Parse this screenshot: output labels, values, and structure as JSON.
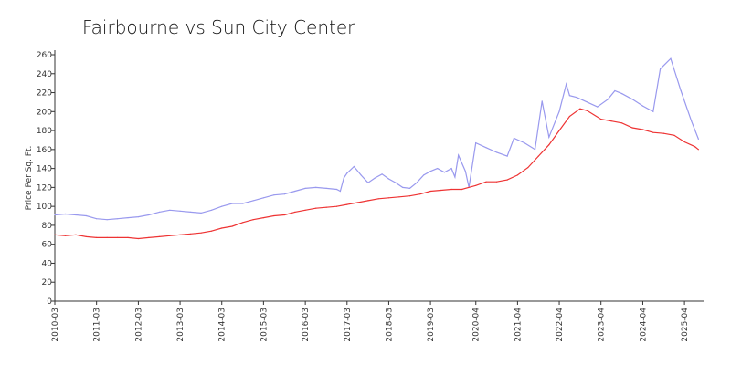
{
  "chart_data": {
    "type": "line",
    "title": "Fairbourne vs Sun City Center",
    "xlabel": "",
    "ylabel": "Price Per Sq. Ft.",
    "ylim": [
      0,
      260
    ],
    "y_ticks": [
      "0",
      "20",
      "40",
      "60",
      "80",
      "100",
      "120",
      "140",
      "160",
      "180",
      "200",
      "220",
      "240",
      "260"
    ],
    "x_tick_labels": [
      "2010-03",
      "2011-03",
      "2012-03",
      "2013-03",
      "2014-03",
      "2015-03",
      "2016-03",
      "2017-03",
      "2018-03",
      "2019-03",
      "2020-04",
      "2021-04",
      "2022-04",
      "2023-04",
      "2024-04",
      "2025-04"
    ],
    "grid": false,
    "legend": "none",
    "series": [
      {
        "color": "#9999ee",
        "points": [
          [
            "2010-03",
            91
          ],
          [
            "2010-06",
            92
          ],
          [
            "2010-09",
            91
          ],
          [
            "2010-12",
            90
          ],
          [
            "2011-03",
            87
          ],
          [
            "2011-06",
            86
          ],
          [
            "2011-09",
            87
          ],
          [
            "2011-12",
            88
          ],
          [
            "2012-03",
            89
          ],
          [
            "2012-06",
            91
          ],
          [
            "2012-09",
            94
          ],
          [
            "2012-12",
            96
          ],
          [
            "2013-03",
            95
          ],
          [
            "2013-06",
            94
          ],
          [
            "2013-09",
            93
          ],
          [
            "2013-12",
            96
          ],
          [
            "2014-03",
            100
          ],
          [
            "2014-06",
            103
          ],
          [
            "2014-09",
            103
          ],
          [
            "2014-12",
            106
          ],
          [
            "2015-03",
            109
          ],
          [
            "2015-06",
            112
          ],
          [
            "2015-09",
            113
          ],
          [
            "2015-12",
            116
          ],
          [
            "2016-03",
            119
          ],
          [
            "2016-06",
            120
          ],
          [
            "2016-09",
            119
          ],
          [
            "2016-12",
            118
          ],
          [
            "2017-01",
            116
          ],
          [
            "2017-02",
            130
          ],
          [
            "2017-03",
            135
          ],
          [
            "2017-05",
            142
          ],
          [
            "2017-07",
            133
          ],
          [
            "2017-09",
            125
          ],
          [
            "2017-11",
            130
          ],
          [
            "2018-01",
            134
          ],
          [
            "2018-03",
            129
          ],
          [
            "2018-05",
            125
          ],
          [
            "2018-07",
            120
          ],
          [
            "2018-09",
            119
          ],
          [
            "2018-11",
            125
          ],
          [
            "2019-01",
            133
          ],
          [
            "2019-03",
            137
          ],
          [
            "2019-05",
            140
          ],
          [
            "2019-07",
            136
          ],
          [
            "2019-09",
            140
          ],
          [
            "2019-10",
            131
          ],
          [
            "2019-11",
            154
          ],
          [
            "2020-01",
            137
          ],
          [
            "2020-02",
            120
          ],
          [
            "2020-04",
            167
          ],
          [
            "2020-07",
            162
          ],
          [
            "2020-10",
            157
          ],
          [
            "2021-01",
            153
          ],
          [
            "2021-03",
            172
          ],
          [
            "2021-06",
            167
          ],
          [
            "2021-09",
            160
          ],
          [
            "2021-11",
            211
          ],
          [
            "2022-01",
            173
          ],
          [
            "2022-04",
            200
          ],
          [
            "2022-06",
            229
          ],
          [
            "2022-07",
            217
          ],
          [
            "2022-09",
            215
          ],
          [
            "2022-12",
            210
          ],
          [
            "2023-03",
            205
          ],
          [
            "2023-06",
            213
          ],
          [
            "2023-08",
            222
          ],
          [
            "2023-10",
            219
          ],
          [
            "2024-01",
            213
          ],
          [
            "2024-04",
            206
          ],
          [
            "2024-07",
            200
          ],
          [
            "2024-09",
            245
          ],
          [
            "2024-12",
            256
          ],
          [
            "2025-03",
            222
          ],
          [
            "2025-06",
            190
          ],
          [
            "2025-08",
            171
          ]
        ]
      },
      {
        "color": "#ee3333",
        "points": [
          [
            "2010-03",
            70
          ],
          [
            "2010-06",
            69
          ],
          [
            "2010-09",
            70
          ],
          [
            "2010-12",
            68
          ],
          [
            "2011-03",
            67
          ],
          [
            "2011-06",
            67
          ],
          [
            "2011-09",
            67
          ],
          [
            "2011-12",
            67
          ],
          [
            "2012-03",
            66
          ],
          [
            "2012-06",
            67
          ],
          [
            "2012-09",
            68
          ],
          [
            "2012-12",
            69
          ],
          [
            "2013-03",
            70
          ],
          [
            "2013-06",
            71
          ],
          [
            "2013-09",
            72
          ],
          [
            "2013-12",
            74
          ],
          [
            "2014-03",
            77
          ],
          [
            "2014-06",
            79
          ],
          [
            "2014-09",
            83
          ],
          [
            "2014-12",
            86
          ],
          [
            "2015-03",
            88
          ],
          [
            "2015-06",
            90
          ],
          [
            "2015-09",
            91
          ],
          [
            "2015-12",
            94
          ],
          [
            "2016-03",
            96
          ],
          [
            "2016-06",
            98
          ],
          [
            "2016-09",
            99
          ],
          [
            "2016-12",
            100
          ],
          [
            "2017-03",
            102
          ],
          [
            "2017-06",
            104
          ],
          [
            "2017-09",
            106
          ],
          [
            "2017-12",
            108
          ],
          [
            "2018-03",
            109
          ],
          [
            "2018-06",
            110
          ],
          [
            "2018-09",
            111
          ],
          [
            "2018-12",
            113
          ],
          [
            "2019-03",
            116
          ],
          [
            "2019-06",
            117
          ],
          [
            "2019-09",
            118
          ],
          [
            "2019-12",
            118
          ],
          [
            "2020-04",
            122
          ],
          [
            "2020-07",
            126
          ],
          [
            "2020-10",
            126
          ],
          [
            "2021-01",
            128
          ],
          [
            "2021-04",
            133
          ],
          [
            "2021-07",
            141
          ],
          [
            "2021-10",
            153
          ],
          [
            "2022-01",
            165
          ],
          [
            "2022-04",
            180
          ],
          [
            "2022-07",
            195
          ],
          [
            "2022-10",
            203
          ],
          [
            "2022-12",
            201
          ],
          [
            "2023-04",
            192
          ],
          [
            "2023-07",
            190
          ],
          [
            "2023-10",
            188
          ],
          [
            "2024-01",
            183
          ],
          [
            "2024-04",
            181
          ],
          [
            "2024-07",
            178
          ],
          [
            "2024-10",
            177
          ],
          [
            "2025-01",
            175
          ],
          [
            "2025-04",
            168
          ],
          [
            "2025-07",
            163
          ],
          [
            "2025-08",
            160
          ]
        ]
      }
    ]
  }
}
